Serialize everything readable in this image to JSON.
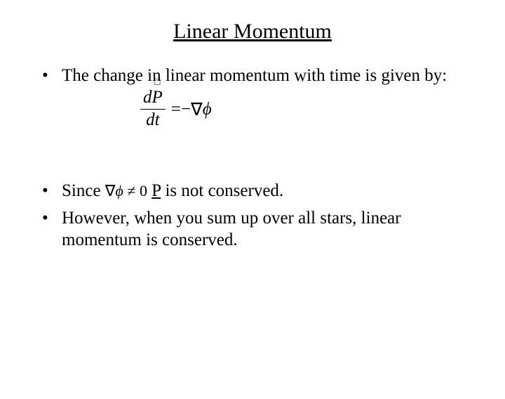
{
  "title": "Linear Momentum",
  "bullets": {
    "b1": "The change in linear momentum with time is given by:",
    "b2a": "Since ",
    "b2_eq_nabla": "∇",
    "b2_eq_phi": "ϕ",
    "b2_eq_neq": " ≠ 0",
    "b2b": " ",
    "b2_P": "P",
    "b2c": " is not conserved.",
    "b3": "However, when you sum up over all stars, linear momentum is conserved."
  },
  "equation": {
    "num_d": "d",
    "num_P": "P",
    "den": "dt",
    "eq": " = ",
    "minus": "−",
    "nabla": "∇",
    "phi": "ϕ",
    "arrow": "□"
  },
  "style": {
    "background": "#ffffff",
    "text_color": "#000000",
    "title_fontsize": 30,
    "body_fontsize": 25,
    "font_family": "Times New Roman"
  }
}
